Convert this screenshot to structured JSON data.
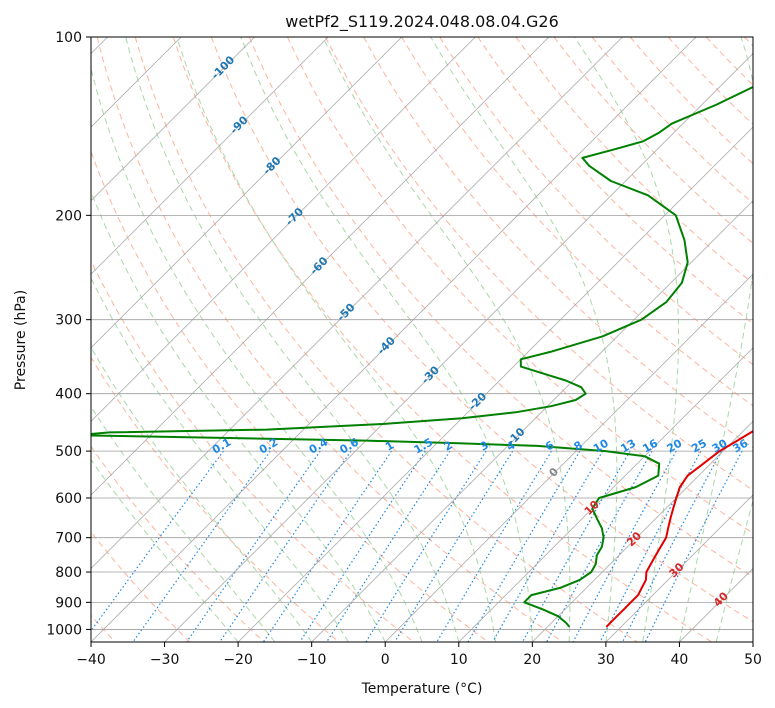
{
  "chart_data": {
    "type": "line",
    "subtype": "skew-T log-P diagram",
    "title": "wetPf2_S119.2024.048.08.04.G26",
    "xlabel": "Temperature (°C)",
    "ylabel": "Pressure (hPa)",
    "xlim": [
      -40,
      50
    ],
    "ylim": [
      1050,
      100
    ],
    "y_scale": "log",
    "x_ticks": [
      -40,
      -30,
      -20,
      -10,
      0,
      10,
      20,
      30,
      40,
      50
    ],
    "y_ticks": [
      100,
      200,
      300,
      400,
      500,
      600,
      700,
      800,
      900,
      1000
    ],
    "grid": true,
    "series": [
      {
        "color": "#e00000",
        "pressure": [
          990,
          975,
          950,
          925,
          900,
          875,
          850,
          825,
          800,
          775,
          750,
          725,
          700,
          675,
          650,
          625,
          600,
          575,
          550,
          525,
          500,
          480,
          460,
          440,
          420,
          400,
          380,
          360,
          340,
          320,
          300,
          280,
          260,
          240,
          220,
          200,
          185,
          170,
          160,
          150,
          140,
          130,
          120,
          110,
          100
        ],
        "temperature": [
          28,
          28,
          28,
          28,
          28,
          28,
          27.5,
          27,
          26,
          25.5,
          25,
          24.5,
          24,
          23,
          22,
          21,
          20,
          19,
          18.5,
          19,
          19.5,
          20.5,
          21.5,
          22.5,
          22.5,
          21.5,
          19.5,
          17,
          14.5,
          12,
          9.5,
          7,
          4.5,
          2,
          -1,
          -3.5,
          -5.5,
          -6.5,
          -6.5,
          -6.5,
          -7.5,
          -8.5,
          -9.5,
          -10.5,
          -11.5
        ]
      },
      {
        "color": "#008000",
        "pressure": [
          990,
          975,
          950,
          925,
          900,
          875,
          850,
          825,
          800,
          775,
          750,
          725,
          700,
          675,
          650,
          625,
          600,
          575,
          550,
          525,
          510,
          500,
          490,
          485,
          480,
          475,
          470,
          465,
          460,
          450,
          440,
          430,
          420,
          410,
          400,
          390,
          380,
          370,
          360,
          350,
          340,
          320,
          300,
          280,
          260,
          240,
          220,
          200,
          185,
          175,
          165,
          160,
          155,
          150,
          145,
          140,
          130,
          120,
          110,
          100
        ],
        "dewpoint": [
          23,
          22,
          20,
          17,
          13.5,
          13.5,
          16.5,
          18,
          18.5,
          18,
          17,
          16.5,
          15.5,
          14,
          12,
          10,
          9.5,
          13,
          14.5,
          13,
          10,
          4,
          -6,
          -17,
          -30,
          -50,
          -70,
          -66,
          -45,
          -30,
          -20,
          -13.5,
          -9.5,
          -7,
          -6.5,
          -8,
          -11,
          -15,
          -19,
          -20,
          -17,
          -12,
          -9,
          -8,
          -8.5,
          -10.5,
          -14,
          -18.5,
          -25,
          -32,
          -37,
          -39,
          -36,
          -33,
          -32,
          -31.5,
          -28,
          -25,
          -22.5,
          -21
        ]
      }
    ],
    "isotherm_labels": [
      "-100",
      "-90",
      "-80",
      "-70",
      "-60",
      "-50",
      "-40",
      "-30",
      "-20",
      "-10",
      "0",
      "10",
      "20",
      "30",
      "40"
    ],
    "mixing_ratio_labels": [
      "0.1",
      "0.2",
      "0.4",
      "0.6",
      "1",
      "1.5",
      "2",
      "3",
      "4",
      "6",
      "8",
      "10",
      "13",
      "16",
      "20",
      "25",
      "30",
      "36"
    ],
    "colors": {
      "temperature": "#e00000",
      "dewpoint": "#008000",
      "isotherm_warm_label": "#d62728",
      "isotherm_cold_label": "#1f77b4",
      "mixing_ratio": "#1e88e5",
      "dry_adiabat": "#ffb39c",
      "moist_adiabat": "#a8d8a8",
      "grid": "#9e9e9e",
      "skewed_isotherm": "#aaaaaa",
      "zero_label": "#888888"
    }
  }
}
